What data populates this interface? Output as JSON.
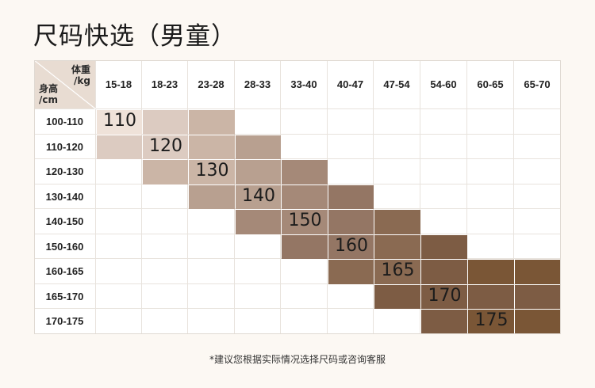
{
  "title": "尺码快选（男童）",
  "corner": {
    "weight_label_1": "体重",
    "weight_label_2": "/kg",
    "height_label_1": "身高",
    "height_label_2": "/cm"
  },
  "weight_ranges": [
    "15-18",
    "18-23",
    "23-28",
    "28-33",
    "33-40",
    "40-47",
    "47-54",
    "54-60",
    "60-65",
    "65-70"
  ],
  "height_ranges": [
    "100-110",
    "110-120",
    "120-130",
    "130-140",
    "140-150",
    "150-160",
    "160-165",
    "165-170",
    "170-175"
  ],
  "sizes": [
    {
      "label": "110",
      "color": "#efe2d9"
    },
    {
      "label": "120",
      "color": "#dccbc1"
    },
    {
      "label": "130",
      "color": "#cbb5a6"
    },
    {
      "label": "140",
      "color": "#b8a090"
    },
    {
      "label": "150",
      "color": "#a58978"
    },
    {
      "label": "160",
      "color": "#947664"
    },
    {
      "label": "165",
      "color": "#8a6a52"
    },
    {
      "label": "170",
      "color": "#7d5c44"
    },
    {
      "label": "175",
      "color": "#7a5636"
    }
  ],
  "note": "*建议您根据实际情况选择尺码或咨询客服"
}
